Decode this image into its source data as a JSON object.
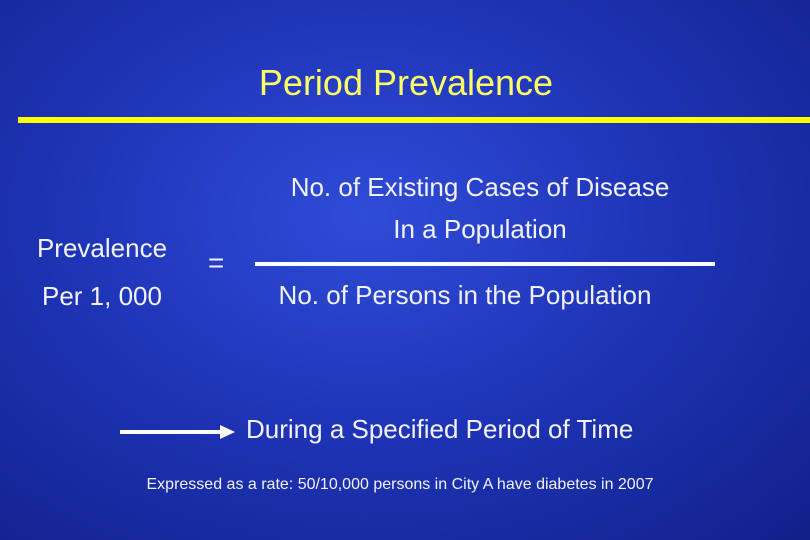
{
  "slide": {
    "title": "Period Prevalence",
    "lhs": {
      "line1": "Prevalence",
      "line2": "Per 1, 000"
    },
    "equals": "=",
    "numerator": {
      "line1": "No. of Existing Cases of Disease",
      "line2": "In a Population"
    },
    "denominator": "No. of Persons in the Population",
    "period_note": "During a Specified Period of Time",
    "footnote": "Expressed as a rate:  50/10,000 persons in City A have diabetes in 2007"
  },
  "colors": {
    "background": "#1f35b8",
    "title": "#ffff66",
    "rule": "#ffff00",
    "text": "#f2f2f2"
  },
  "icons": {
    "arrow": "right-arrow-icon"
  }
}
